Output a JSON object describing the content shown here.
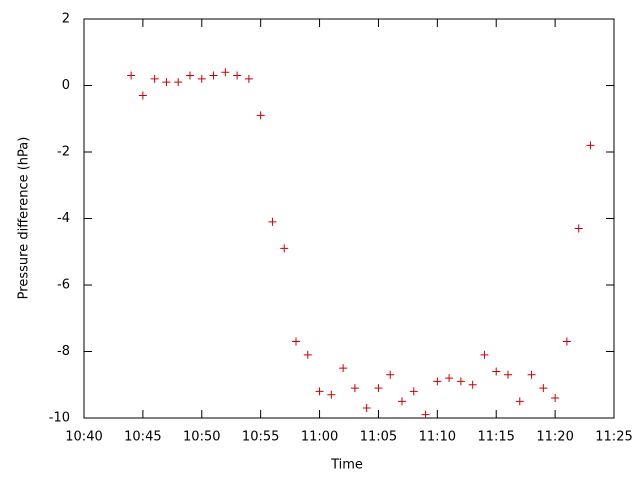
{
  "chart_data": {
    "type": "scatter",
    "xlabel": "Time",
    "ylabel": "Pressure difference (hPa)",
    "x": [
      "10:44",
      "10:45",
      "10:46",
      "10:47",
      "10:48",
      "10:49",
      "10:50",
      "10:51",
      "10:52",
      "10:53",
      "10:54",
      "10:55",
      "10:56",
      "10:57",
      "10:58",
      "10:59",
      "11:00",
      "11:01",
      "11:02",
      "11:03",
      "11:04",
      "11:05",
      "11:06",
      "11:07",
      "11:08",
      "11:09",
      "11:10",
      "11:11",
      "11:12",
      "11:13",
      "11:14",
      "11:15",
      "11:16",
      "11:17",
      "11:18",
      "11:19",
      "11:20",
      "11:21",
      "11:22",
      "11:23"
    ],
    "values": [
      0.3,
      -0.3,
      0.2,
      0.1,
      0.1,
      0.3,
      0.2,
      0.3,
      0.4,
      0.3,
      0.2,
      -0.9,
      -4.1,
      -4.9,
      -7.7,
      -8.1,
      -9.2,
      -9.3,
      -8.5,
      -9.1,
      -9.7,
      -9.1,
      -8.7,
      -9.5,
      -9.2,
      -9.9,
      -8.9,
      -8.8,
      -8.9,
      -9.0,
      -8.1,
      -8.6,
      -8.7,
      -9.5,
      -8.7,
      -9.1,
      -9.4,
      -7.7,
      -4.3,
      -1.8
    ],
    "color": "#cc0000",
    "xlim": [
      "10:40",
      "11:25"
    ],
    "xticks": [
      "10:40",
      "10:45",
      "10:50",
      "10:55",
      "11:00",
      "11:05",
      "11:10",
      "11:15",
      "11:20",
      "11:25"
    ],
    "ylim": [
      -10,
      2
    ],
    "yticks": [
      -10,
      -8,
      -6,
      -4,
      -2,
      0,
      2
    ]
  }
}
